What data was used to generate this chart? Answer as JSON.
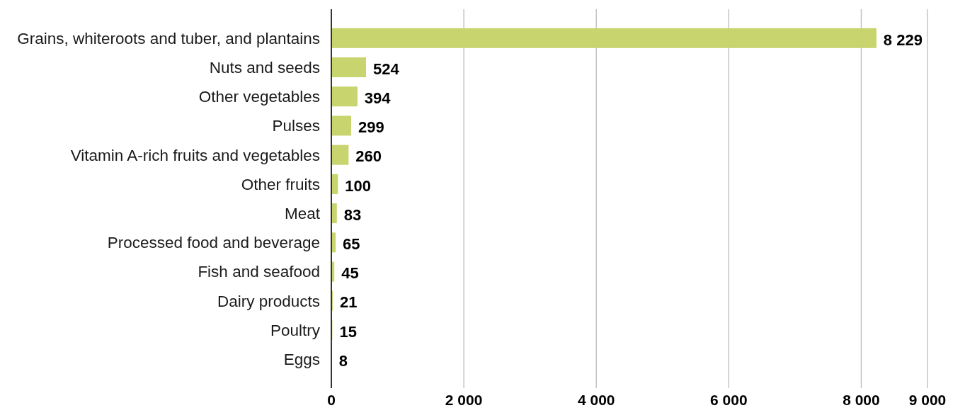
{
  "chart_data": {
    "type": "bar",
    "orientation": "horizontal",
    "categories": [
      "Grains, whiteroots and tuber, and plantains",
      "Nuts and seeds",
      "Other vegetables",
      "Pulses",
      "Vitamin A-rich fruits and vegetables",
      "Other fruits",
      "Meat",
      "Processed food and beverage",
      "Fish and seafood",
      "Dairy products",
      "Poultry",
      "Eggs"
    ],
    "values": [
      8229,
      524,
      394,
      299,
      260,
      100,
      83,
      65,
      45,
      21,
      15,
      8
    ],
    "value_labels": [
      "8 229",
      "524",
      "394",
      "299",
      "260",
      "100",
      "83",
      "65",
      "45",
      "21",
      "15",
      "8"
    ],
    "color": "#c8d46e",
    "xlim": [
      0,
      9000
    ],
    "xticks": [
      0,
      {
        "value": 2000,
        "label": "2 000"
      },
      {
        "value": 4000,
        "label": "4 000"
      },
      {
        "value": 6000,
        "label": "6 000"
      },
      {
        "value": 8000,
        "label": "8 000"
      },
      {
        "value": 9000,
        "label": "9 000"
      }
    ],
    "grid": "x"
  }
}
